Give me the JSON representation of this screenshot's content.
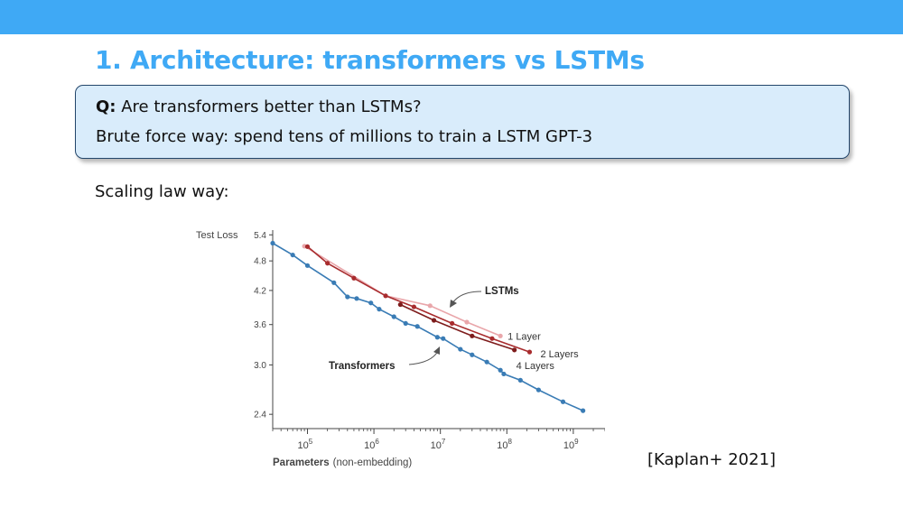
{
  "slide": {
    "title": "1. Architecture: transformers vs LSTMs",
    "question_label": "Q:",
    "question_text": "Are transformers better than LSTMs?",
    "brute_force": "Brute force way: spend tens of millions to train a LSTM GPT-3",
    "scaling_law": "Scaling law way:",
    "citation": "[Kaplan+ 2021]"
  },
  "colors": {
    "accent": "#3fa9f5",
    "box_fill": "#d9ecfb",
    "box_border": "#23466b",
    "transformer_line": "#3a7cb5",
    "lstm_1_layer": "#e9a6aa",
    "lstm_2_layers": "#a82c2e",
    "lstm_4_layers": "#7e1c1c"
  },
  "chart_data": {
    "type": "line",
    "ylabel": "Test Loss",
    "xlabel": "Parameters",
    "xlabel_note": "(non-embedding)",
    "x_scale": "log",
    "y_scale": "log",
    "xlim": [
      30000,
      3000000000
    ],
    "ylim": [
      2.25,
      5.45
    ],
    "x_ticks": [
      100000,
      1000000,
      10000000,
      100000000,
      1000000000
    ],
    "x_tick_labels": [
      {
        "base": "10",
        "exp": "5"
      },
      {
        "base": "10",
        "exp": "6"
      },
      {
        "base": "10",
        "exp": "7"
      },
      {
        "base": "10",
        "exp": "8"
      },
      {
        "base": "10",
        "exp": "9"
      }
    ],
    "y_ticks": [
      5.4,
      4.8,
      4.2,
      3.6,
      3.0,
      2.4
    ],
    "y_tick_labels": [
      "5.4",
      "4.8",
      "4.2",
      "3.6",
      "3.0",
      "2.4"
    ],
    "grid": false,
    "series": [
      {
        "name": "Transformers",
        "color": "#3a7cb5",
        "x": [
          30000,
          60000,
          100000,
          250000,
          400000,
          550000,
          900000,
          1200000,
          2000000,
          3000000,
          4500000,
          9000000,
          11000000,
          20000000,
          30000000,
          50000000,
          80000000,
          90000000,
          160000000,
          300000000,
          700000000,
          1400000000
        ],
        "y": [
          5.2,
          4.93,
          4.7,
          4.35,
          4.08,
          4.05,
          3.97,
          3.86,
          3.73,
          3.62,
          3.57,
          3.4,
          3.38,
          3.22,
          3.14,
          3.04,
          2.93,
          2.88,
          2.8,
          2.68,
          2.54,
          2.44
        ]
      },
      {
        "name": "1 Layer",
        "color": "#e9a6aa",
        "x": [
          90000,
          1500000,
          7000000,
          25000000,
          80000000
        ],
        "y": [
          5.13,
          4.1,
          3.92,
          3.64,
          3.42
        ]
      },
      {
        "name": "2 Layers",
        "color": "#a82c2e",
        "x": [
          100000,
          200000,
          500000,
          1500000,
          4000000,
          15000000,
          60000000,
          220000000
        ],
        "y": [
          5.12,
          4.75,
          4.44,
          4.1,
          3.9,
          3.62,
          3.38,
          3.18
        ]
      },
      {
        "name": "4 Layers",
        "color": "#7e1c1c",
        "x": [
          2500000,
          8000000,
          30000000,
          130000000
        ],
        "y": [
          3.94,
          3.67,
          3.42,
          3.21
        ]
      }
    ],
    "annotations": [
      {
        "text": "LSTMs",
        "bold": true
      },
      {
        "text": "Transformers",
        "bold": true
      }
    ]
  }
}
